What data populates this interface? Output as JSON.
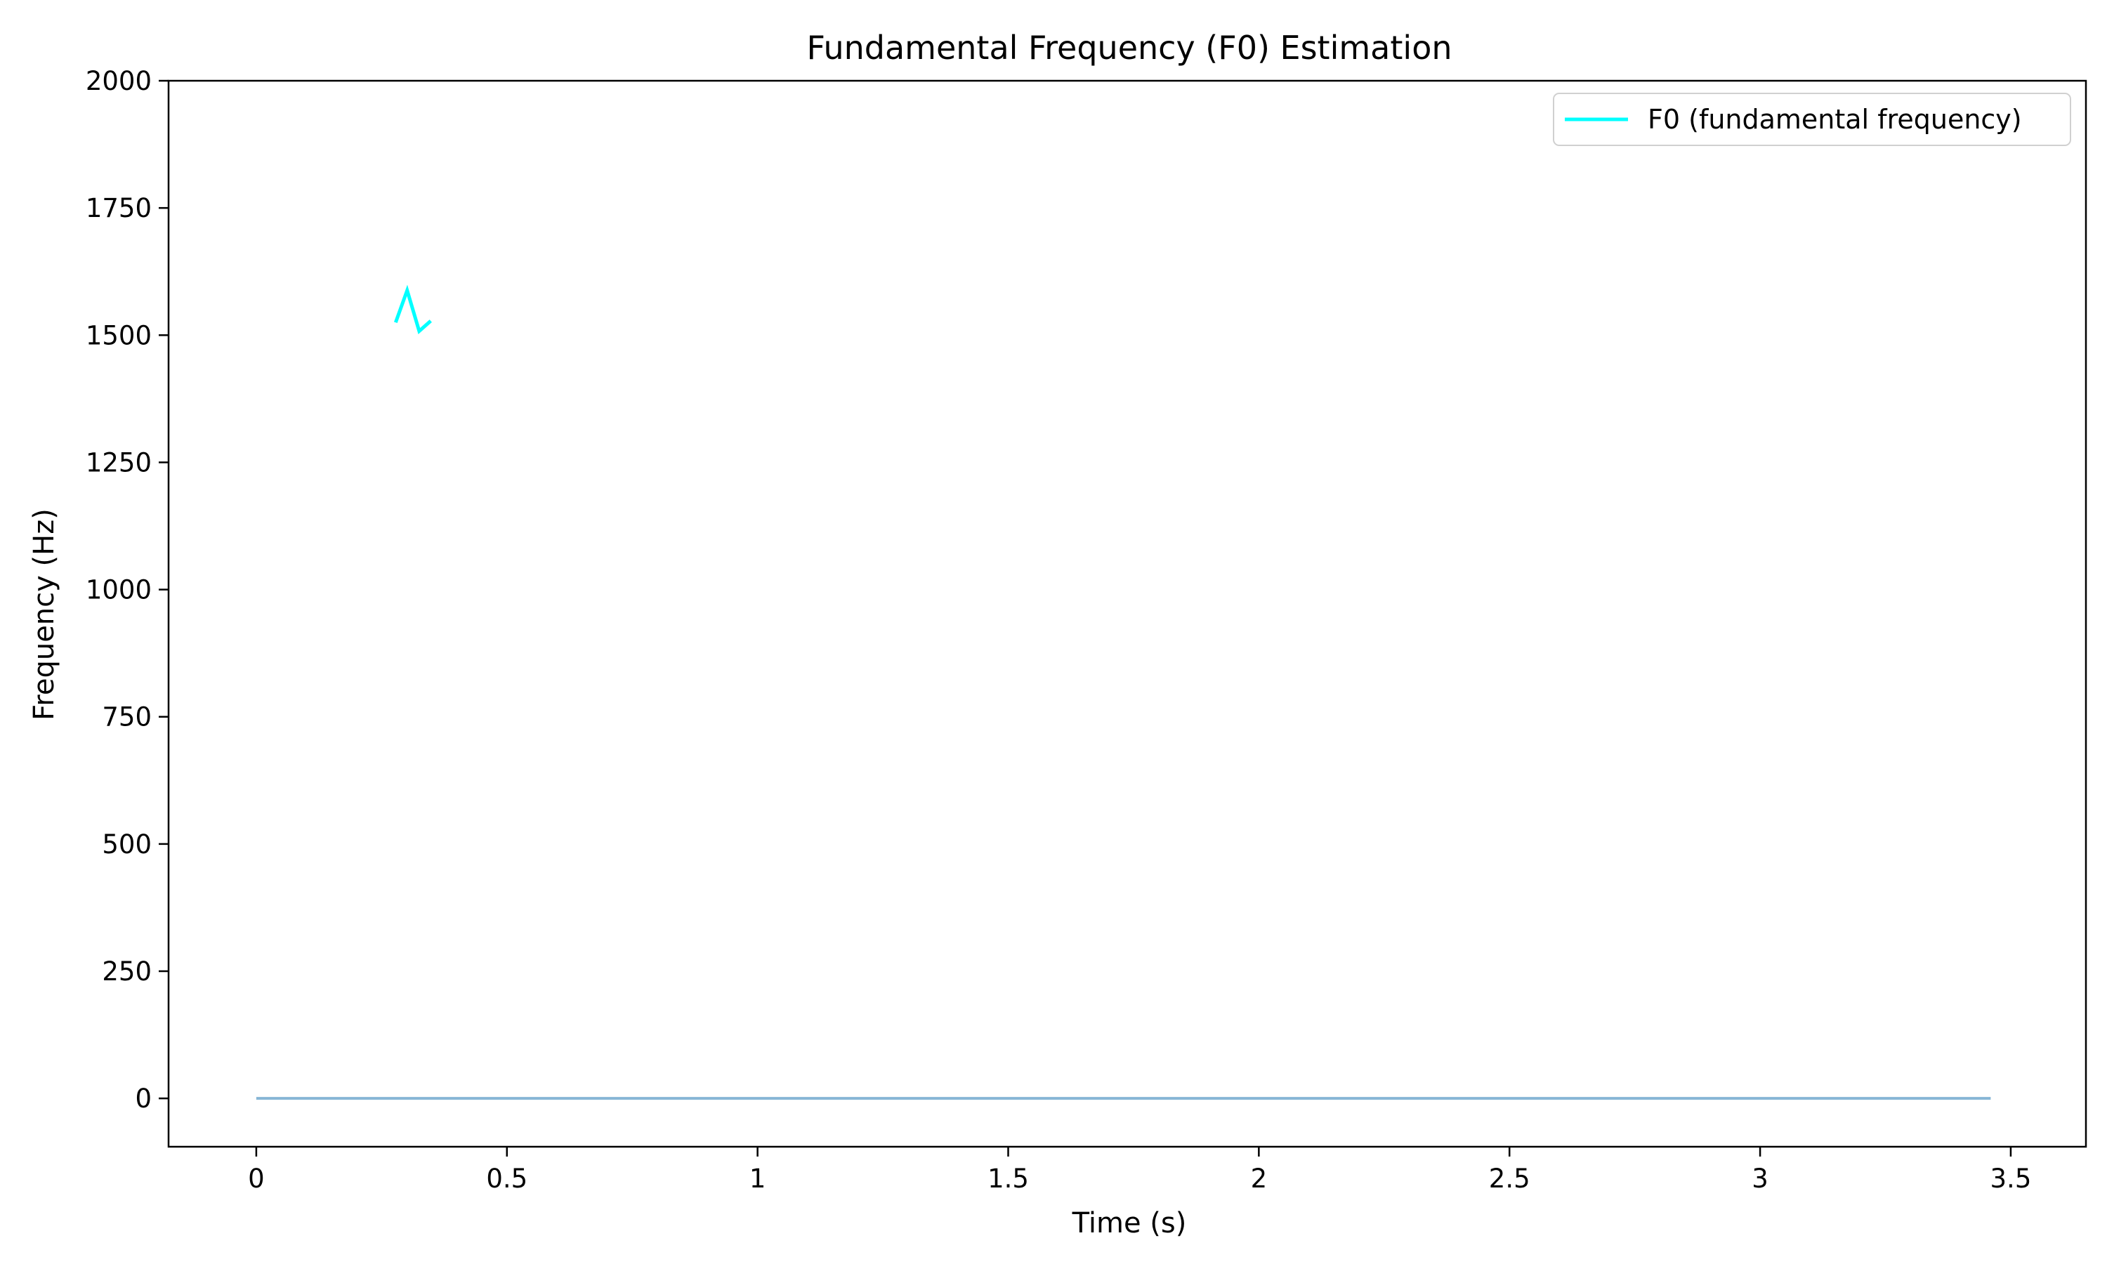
{
  "chart_data": {
    "type": "line",
    "title": "Fundamental Frequency (F0) Estimation",
    "xlabel": "Time (s)",
    "ylabel": "Frequency (Hz)",
    "xlim": [
      -0.175,
      3.65
    ],
    "ylim": [
      -95,
      2000
    ],
    "xticks": [
      0,
      0.5,
      1,
      1.5,
      2,
      2.5,
      3,
      3.5
    ],
    "xtick_labels": [
      "0",
      "0.5",
      "1",
      "1.5",
      "2",
      "2.5",
      "3",
      "3.5"
    ],
    "yticks": [
      0,
      250,
      500,
      750,
      1000,
      1250,
      1500,
      1750,
      2000
    ],
    "ytick_labels": [
      "0",
      "250",
      "500",
      "750",
      "1000",
      "1250",
      "1500",
      "1750",
      "2000"
    ],
    "grid": false,
    "legend_position": "top-right",
    "series": [
      {
        "name": "F0 (fundamental frequency)",
        "color": "#00ffff",
        "x": [
          0.278,
          0.301,
          0.325,
          0.348
        ],
        "y": [
          1525,
          1588,
          1508,
          1528
        ]
      },
      {
        "color": "#87b6d6",
        "x": [
          0,
          3.46
        ],
        "y": [
          0,
          0
        ]
      }
    ]
  }
}
